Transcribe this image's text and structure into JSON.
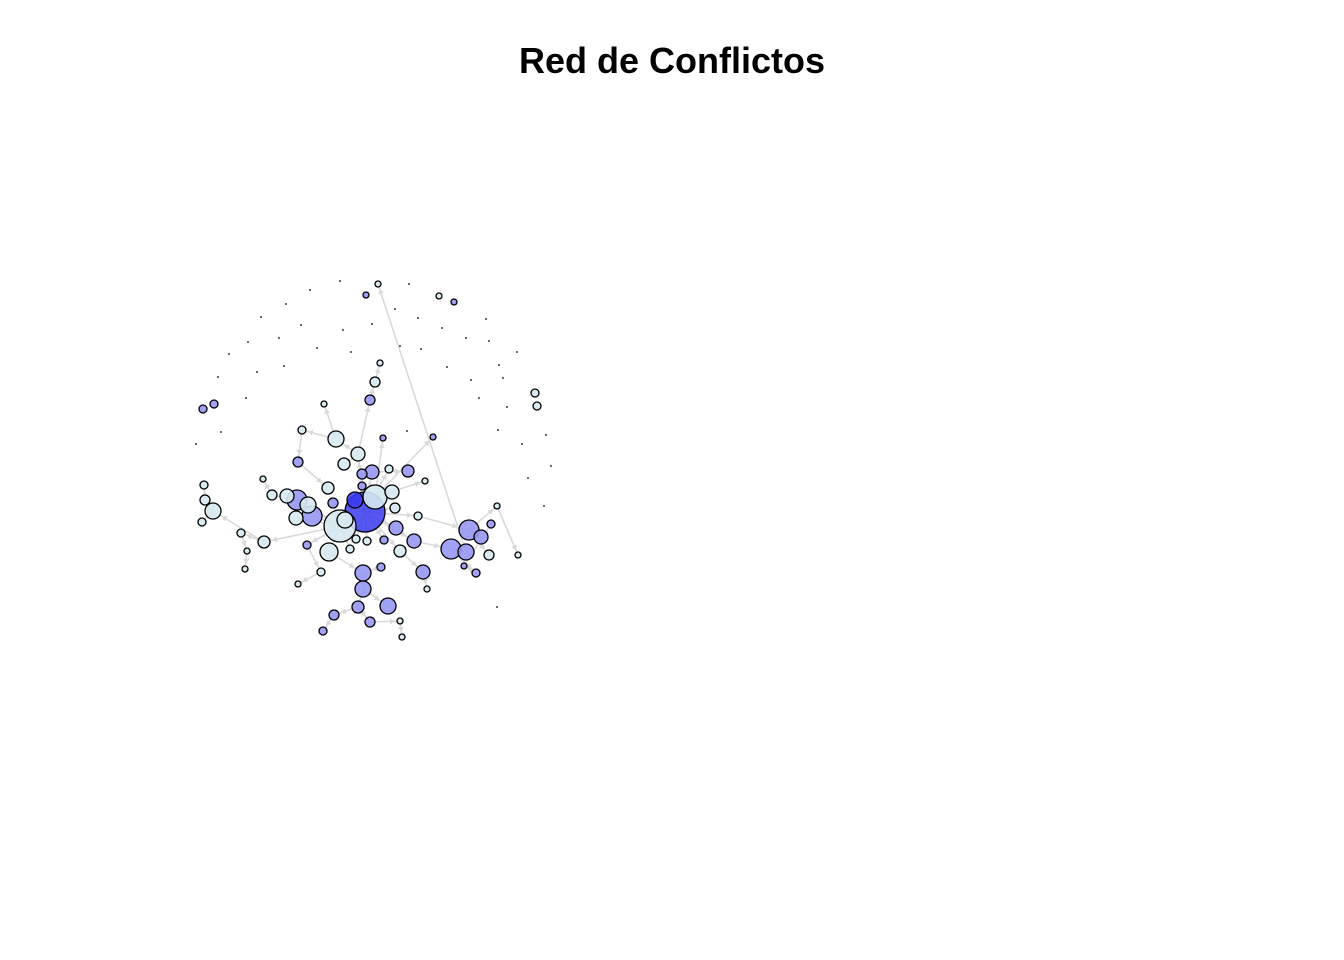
{
  "title": "Red de Conflictos",
  "colors": {
    "edge": "#d9d9d9",
    "node_low": "#d6eaf0",
    "node_mid": "#9898f4",
    "node_high": "#3a3af0",
    "stroke": "#000000"
  }
}
